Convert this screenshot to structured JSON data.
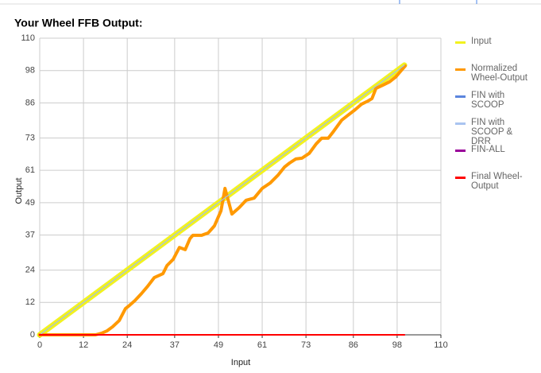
{
  "chart_data": {
    "type": "line",
    "title": "Your Wheel FFB Output:",
    "x_label": "Input",
    "y_label": "Output",
    "xlim": [
      0,
      110
    ],
    "ylim": [
      0,
      110
    ],
    "xticks": [
      0,
      12,
      24,
      37,
      49,
      61,
      73,
      86,
      98,
      110
    ],
    "yticks": [
      0,
      12,
      24,
      37,
      49,
      61,
      73,
      86,
      98,
      110
    ],
    "grid": true,
    "series": [
      {
        "name": "Input",
        "color": "#f2f21f",
        "width": 7,
        "x": [
          0,
          100
        ],
        "values": [
          0,
          100
        ]
      },
      {
        "name": "Normalized Wheel-Output",
        "color": "#ff9900",
        "width": 4,
        "x": [
          0,
          15.3,
          17,
          18.5,
          20,
          21.8,
          23.5,
          24.6,
          26.1,
          27.9,
          29.6,
          31.4,
          33.8,
          34.9,
          36.6,
          38.3,
          39.9,
          41.2,
          42,
          44.4,
          46.2,
          47.9,
          49.7,
          50.8,
          52.7,
          54.7,
          56.6,
          58.8,
          61,
          63.2,
          65.4,
          67.1,
          68.5,
          70.2,
          71.9,
          73.9,
          75.8,
          77.3,
          79.1,
          80.6,
          82.8,
          84.5,
          86.5,
          88.2,
          90,
          91.1,
          92.2,
          94.1,
          95.9,
          97.6,
          100.2
        ],
        "values": [
          0,
          0,
          0.6,
          1.5,
          3,
          5.3,
          9.7,
          10.9,
          12.7,
          15.3,
          18,
          21.2,
          22.7,
          25.7,
          28,
          32.4,
          31.6,
          35.7,
          36.9,
          36.9,
          37.8,
          40.4,
          46,
          54.3,
          44.8,
          47.2,
          49.9,
          50.7,
          54.3,
          56.3,
          59.3,
          62.2,
          63.7,
          65.2,
          65.5,
          67.3,
          70.8,
          72.9,
          72.9,
          75.5,
          79.6,
          81.4,
          83.5,
          85.5,
          86.7,
          87.6,
          91.4,
          92.6,
          93.8,
          95.6,
          99.7
        ]
      },
      {
        "name": "FIN with SCOOP",
        "color": "#5b85de",
        "width": 1,
        "x": [
          0,
          100
        ],
        "values": [
          0,
          100
        ]
      },
      {
        "name": "FIN with SCOOP & DRR",
        "color": "#a9c4f0",
        "width": 1,
        "x": [
          0,
          100
        ],
        "values": [
          0,
          100
        ]
      },
      {
        "name": "FIN-ALL",
        "color": "#990099",
        "width": 2,
        "x": [
          0,
          100
        ],
        "values": [
          0,
          0
        ]
      },
      {
        "name": "Final Wheel-Output",
        "color": "#ff0000",
        "width": 2,
        "x": [
          0,
          100
        ],
        "values": [
          0,
          0
        ]
      }
    ]
  }
}
